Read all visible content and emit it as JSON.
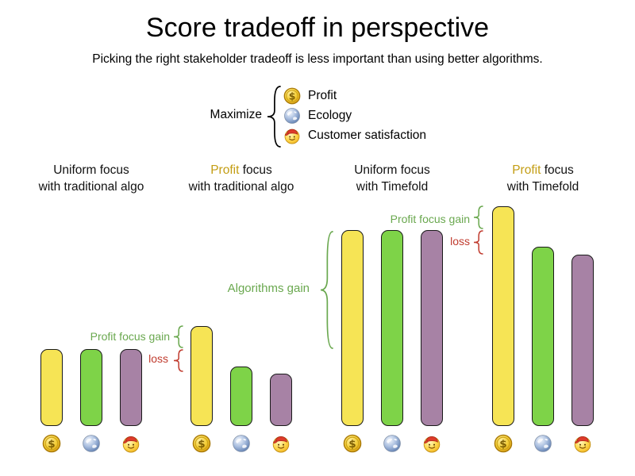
{
  "title": "Score tradeoff in perspective",
  "subtitle": "Picking the right stakeholder tradeoff is less important than using better algorithms.",
  "legend": {
    "label": "Maximize",
    "items": [
      {
        "icon": "coin-dollar-icon",
        "label": "Profit"
      },
      {
        "icon": "globe-icon",
        "label": "Ecology"
      },
      {
        "icon": "smiley-cap-icon",
        "label": "Customer satisfaction"
      }
    ]
  },
  "colors": {
    "bar_profit": "#f6e455",
    "bar_ecology": "#7ed348",
    "bar_customer": "#a782a5",
    "bar_outline": "#1a1a1a",
    "gain_green": "#6aa84f",
    "loss_red": "#c03b2e",
    "profit_text_gold": "#c39d13",
    "text_black": "#111111"
  },
  "chart_data": {
    "type": "bar",
    "stakeholders": [
      "Profit",
      "Ecology",
      "Customer satisfaction"
    ],
    "value_unit": "relative score (uniform focus with traditional algo = 100)",
    "axes_shown": false,
    "grid": false,
    "groups": [
      {
        "label_highlight": "",
        "label_rest": "Uniform focus",
        "line2": "with traditional algo",
        "values": [
          100,
          100,
          100
        ]
      },
      {
        "label_highlight": "Profit",
        "label_rest": " focus",
        "line2": "with traditional algo",
        "values": [
          130,
          77,
          68
        ]
      },
      {
        "label_highlight": "",
        "label_rest": "Uniform focus",
        "line2": "with Timefold",
        "values": [
          255,
          255,
          255
        ]
      },
      {
        "label_highlight": "Profit",
        "label_rest": " focus",
        "line2": "with Timefold",
        "values": [
          286,
          233,
          223
        ]
      }
    ],
    "annotations": [
      {
        "id": "g2-gain",
        "text": "Profit focus gain",
        "kind": "gain"
      },
      {
        "id": "g2-loss",
        "text": "loss",
        "kind": "loss"
      },
      {
        "id": "algorithms-gain",
        "text": "Algorithms gain",
        "kind": "gain"
      },
      {
        "id": "g4-gain",
        "text": "Profit focus gain",
        "kind": "gain"
      },
      {
        "id": "g4-loss",
        "text": "loss",
        "kind": "loss"
      }
    ]
  }
}
